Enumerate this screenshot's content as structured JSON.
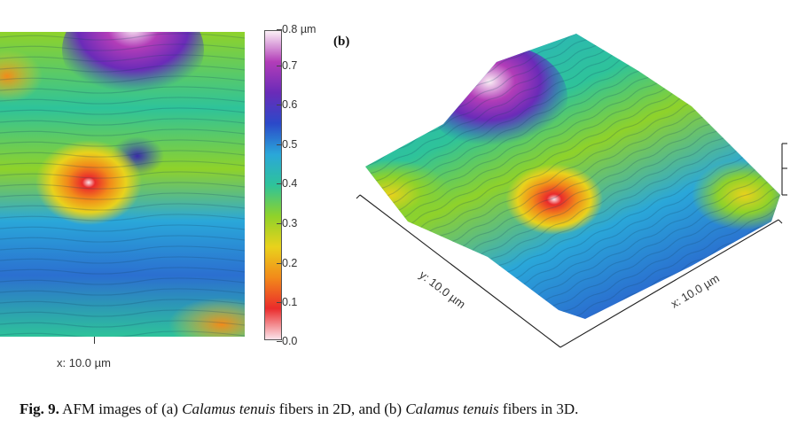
{
  "panel_a": {
    "x_axis_label": "x: 10.0 µm"
  },
  "colorbar": {
    "ticks": [
      "0.8 µm",
      "0.7",
      "0.6",
      "0.5",
      "0.4",
      "0.3",
      "0.2",
      "0.1",
      "0.0"
    ],
    "colors": [
      "#fbe3ea",
      "#ea2b2b",
      "#f28a1a",
      "#e9d21c",
      "#8fd22a",
      "#2ec39a",
      "#2aa7d9",
      "#2b49c9",
      "#6a2bb8",
      "#b23db8",
      "#fbf0f6"
    ]
  },
  "panel_b": {
    "label": "(b)",
    "y_axis_label": "y: 10.0 µm",
    "x_axis_label": "x: 10.0 µm"
  },
  "caption": {
    "fig_label": "Fig. 9.",
    "text_1": " AFM images of (a) ",
    "species_1": "Calamus tenuis",
    "text_2": " fibers in 2D, and (b) ",
    "species_2": "Calamus tenuis",
    "text_3": " fibers in 3D."
  }
}
